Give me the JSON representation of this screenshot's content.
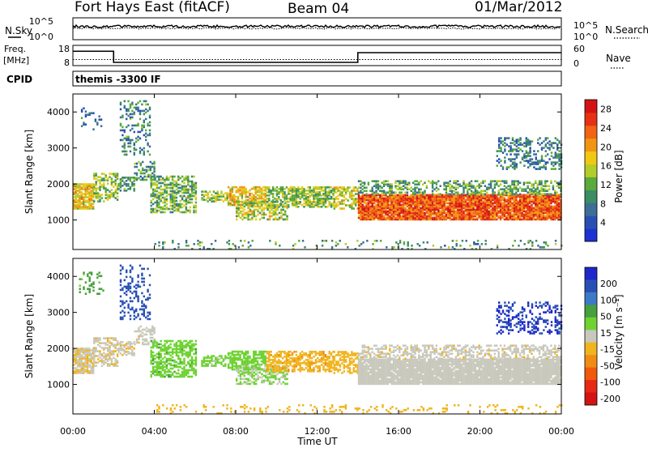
{
  "header": {
    "station": "Fort Hays East (fitACF)",
    "beam": "Beam 04",
    "date": "01/Mar/2012"
  },
  "top_panel": {
    "left_label": "N.Sky",
    "right_label": "N.Search",
    "tick_top": "10^5",
    "tick_bottom": "10^0"
  },
  "freq_panel": {
    "left_label_1": "Freq.",
    "left_label_2": "[MHz]",
    "right_label": "Nave",
    "left_ticks": [
      "18",
      "8"
    ],
    "right_ticks": [
      "60",
      "0"
    ],
    "cpid_label": "CPID",
    "cpid_value": "themis -3300 IF"
  },
  "colors": {
    "power": [
      "#1e32d2",
      "#2850b4",
      "#3c6e96",
      "#3c8c64",
      "#5aaa3c",
      "#b4cc28",
      "#f0c814",
      "#f09614",
      "#f06414",
      "#e63214",
      "#d21414"
    ],
    "velocity": [
      "#1e28c8",
      "#2850b4",
      "#3c7ac8",
      "#46a03c",
      "#6ed232",
      "#c8c8bc",
      "#f0b41e",
      "#f08c14",
      "#f05a0a",
      "#e62814",
      "#d21414"
    ]
  },
  "chart_data": {
    "type": "heatmap",
    "xlabel": "Time UT",
    "x_ticks": [
      "00:00",
      "04:00",
      "08:00",
      "12:00",
      "16:00",
      "20:00",
      "00:00"
    ],
    "xlim_hours": [
      0,
      24
    ],
    "panels": [
      {
        "name": "power",
        "ylabel": "Slant Range [km]",
        "ylim": [
          180,
          4500
        ],
        "y_ticks": [
          1000,
          2000,
          3000,
          4000
        ],
        "colorbar": {
          "label": "Power [dB]",
          "ticks": [
            4,
            8,
            12,
            16,
            20,
            24,
            28
          ],
          "range": [
            0,
            30
          ]
        }
      },
      {
        "name": "velocity",
        "ylabel": "Slant Range [km]",
        "ylim": [
          180,
          4500
        ],
        "y_ticks": [
          1000,
          2000,
          3000,
          4000
        ],
        "colorbar": {
          "label": "Velocity [m s⁻¹]",
          "ticks": [
            "200",
            "100",
            "50",
            "15",
            "-15",
            "-50",
            "-100",
            "-200"
          ]
        }
      }
    ],
    "frequency_steps": [
      {
        "t0": 0,
        "t1": 2.0,
        "mhz": 15.5
      },
      {
        "t0": 2.0,
        "t1": 14.0,
        "mhz": 10.0
      },
      {
        "t0": 14.0,
        "t1": 24,
        "mhz": 14.8
      }
    ],
    "nave_level": 18,
    "scatter_regions": [
      {
        "t0": 0.0,
        "t1": 1.0,
        "r0": 1300,
        "r1": 2000,
        "p": 18,
        "v": -12,
        "d": 0.85
      },
      {
        "t0": 1.0,
        "t1": 2.2,
        "r0": 1500,
        "r1": 2300,
        "p": 14,
        "v": -8,
        "d": 0.55
      },
      {
        "t0": 2.2,
        "t1": 3.0,
        "r0": 1800,
        "r1": 2200,
        "p": 11,
        "v": -10,
        "d": 0.6
      },
      {
        "t0": 3.0,
        "t1": 4.0,
        "r0": 2100,
        "r1": 2600,
        "p": 10,
        "v": -5,
        "d": 0.45
      },
      {
        "t0": 0.3,
        "t1": 1.5,
        "r0": 3500,
        "r1": 4100,
        "p": 7,
        "v": 60,
        "d": 0.2
      },
      {
        "t0": 2.3,
        "t1": 3.8,
        "r0": 2800,
        "r1": 4300,
        "p": 9,
        "v": 120,
        "d": 0.3
      },
      {
        "t0": 3.8,
        "t1": 6.0,
        "r0": 1200,
        "r1": 2200,
        "p": 12,
        "v": 40,
        "d": 0.6
      },
      {
        "t0": 6.3,
        "t1": 7.6,
        "r0": 1500,
        "r1": 1800,
        "p": 14,
        "v": 25,
        "d": 0.55
      },
      {
        "t0": 7.6,
        "t1": 9.5,
        "r0": 1400,
        "r1": 1900,
        "p": 18,
        "v": 30,
        "d": 0.7
      },
      {
        "t0": 8.0,
        "t1": 10.5,
        "r0": 1000,
        "r1": 1500,
        "p": 15,
        "v": 20,
        "d": 0.55
      },
      {
        "t0": 9.5,
        "t1": 12.8,
        "r0": 1350,
        "r1": 1900,
        "p": 13,
        "v": -40,
        "d": 0.65
      },
      {
        "t0": 12.8,
        "t1": 14.0,
        "r0": 1300,
        "r1": 1900,
        "p": 16,
        "v": -30,
        "d": 0.55
      },
      {
        "t0": 14.0,
        "t1": 24.0,
        "r0": 1000,
        "r1": 1700,
        "p": 24,
        "v": -2,
        "d": 0.95
      },
      {
        "t0": 14.0,
        "t1": 24.0,
        "r0": 1700,
        "r1": 2100,
        "p": 11,
        "v": -5,
        "d": 0.5
      },
      {
        "t0": 20.8,
        "t1": 24.0,
        "r0": 2400,
        "r1": 3300,
        "p": 8,
        "v": 150,
        "d": 0.35
      },
      {
        "t0": 4.0,
        "t1": 24.0,
        "r0": 180,
        "r1": 420,
        "p": 10,
        "v": -30,
        "d": 0.12
      }
    ]
  }
}
